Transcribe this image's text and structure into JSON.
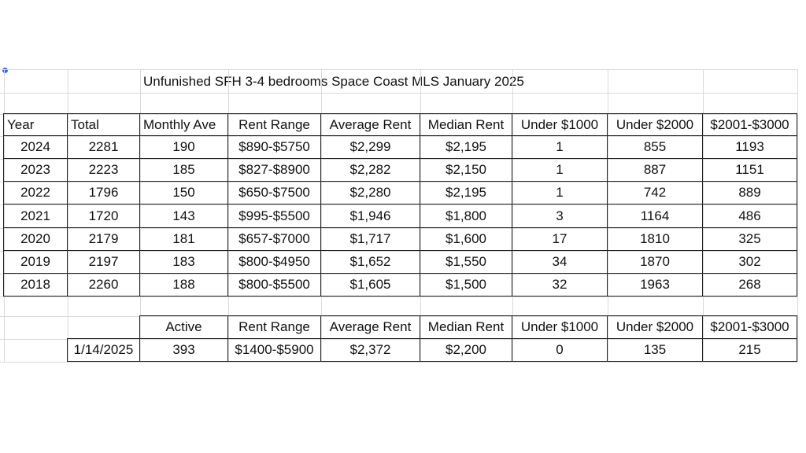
{
  "title": "Unfunished SFH 3-4 bedrooms Space Coast MLS January 2025",
  "history": {
    "header": [
      "Year",
      "Total",
      "Monthly Ave",
      "Rent Range",
      "Average Rent",
      "Median Rent",
      "Under $1000",
      "Under $2000",
      "$2001-$3000"
    ],
    "rows": [
      [
        "2024",
        "2281",
        "190",
        "$890-$5750",
        "$2,299",
        "$2,195",
        "1",
        "855",
        "1193"
      ],
      [
        "2023",
        "2223",
        "185",
        "$827-$8900",
        "$2,282",
        "$2,150",
        "1",
        "887",
        "1151"
      ],
      [
        "2022",
        "1796",
        "150",
        "$650-$7500",
        "$2,280",
        "$2,195",
        "1",
        "742",
        "889"
      ],
      [
        "2021",
        "1720",
        "143",
        "$995-$5500",
        "$1,946",
        "$1,800",
        "3",
        "1164",
        "486"
      ],
      [
        "2020",
        "2179",
        "181",
        "$657-$7000",
        "$1,717",
        "$1,600",
        "17",
        "1810",
        "325"
      ],
      [
        "2019",
        "2197",
        "183",
        "$800-$4950",
        "$1,652",
        "$1,550",
        "34",
        "1870",
        "302"
      ],
      [
        "2018",
        "2260",
        "188",
        "$800-$5500",
        "$1,605",
        "$1,500",
        "32",
        "1963",
        "268"
      ]
    ]
  },
  "current": {
    "header": [
      "Active",
      "Rent Range",
      "Average Rent",
      "Median Rent",
      "Under $1000",
      "Under $2000",
      "$2001-$3000"
    ],
    "rows": [
      [
        "1/14/2025",
        "393",
        "$1400-$5900",
        "$2,372",
        "$2,200",
        "0",
        "135",
        "215"
      ]
    ]
  }
}
